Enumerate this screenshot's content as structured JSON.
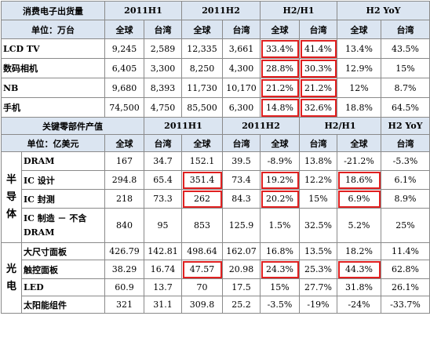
{
  "table1": {
    "title": "消费电子出货量",
    "unit": "单位：万台",
    "periods": [
      "2011H1",
      "2011H2",
      "H2/H1",
      "H2 YoY"
    ],
    "sub": [
      "全球",
      "台湾"
    ],
    "rows": [
      {
        "label": "LCD TV",
        "values": [
          "9,245",
          "2,589",
          "12,335",
          "3,661",
          "33.4%",
          "41.4%",
          "13.4%",
          "43.5%"
        ]
      },
      {
        "label": "数码相机",
        "values": [
          "6,405",
          "3,300",
          "8,250",
          "4,300",
          "28.8%",
          "30.3%",
          "12.9%",
          "15%"
        ]
      },
      {
        "label": "NB",
        "values": [
          "9,680",
          "8,393",
          "11,730",
          "10,170",
          "21.2%",
          "21.2%",
          "12%",
          "8.7%"
        ]
      },
      {
        "label": "手机",
        "values": [
          "74,500",
          "4,750",
          "85,500",
          "6,300",
          "14.8%",
          "32.6%",
          "18.8%",
          "64.5%"
        ]
      }
    ]
  },
  "table2": {
    "title": "关键零部件产值",
    "unit": "单位：亿美元",
    "periods": [
      "2011H1",
      "2011H2",
      "H2/H1",
      "H2 YoY"
    ],
    "sub": [
      "全球",
      "台湾"
    ],
    "groups": [
      {
        "category": [
          "半",
          "导",
          "体"
        ],
        "rows": [
          {
            "label": "DRAM",
            "values": [
              "167",
              "34.7",
              "152.1",
              "39.5",
              "-8.9%",
              "13.8%",
              "-21.2%",
              "-5.3%"
            ]
          },
          {
            "label": "IC 设计",
            "values": [
              "294.8",
              "65.4",
              "351.4",
              "73.4",
              "19.2%",
              "12.2%",
              "18.6%",
              "6.1%"
            ]
          },
          {
            "label": "IC 封测",
            "values": [
              "218",
              "73.3",
              "262",
              "84.3",
              "20.2%",
              "15%",
              "6.9%",
              "8.9%"
            ]
          },
          {
            "label": "IC 制造 － 不含 DRAM",
            "values": [
              "840",
              "95",
              "853",
              "125.9",
              "1.5%",
              "32.5%",
              "5.2%",
              "25%"
            ]
          }
        ]
      },
      {
        "category": [
          "光",
          "电"
        ],
        "rows": [
          {
            "label": "大尺寸面板",
            "values": [
              "426.79",
              "142.81",
              "498.64",
              "162.07",
              "16.8%",
              "13.5%",
              "18.2%",
              "11.4%"
            ]
          },
          {
            "label": "触控面板",
            "values": [
              "38.29",
              "16.74",
              "47.57",
              "20.98",
              "24.3%",
              "25.3%",
              "44.3%",
              "62.8%"
            ]
          },
          {
            "label": "LED",
            "values": [
              "60.9",
              "13.7",
              "70",
              "17.5",
              "15%",
              "27.7%",
              "31.8%",
              "26.1%"
            ]
          },
          {
            "label": "太阳能组件",
            "values": [
              "321",
              "31.1",
              "309.8",
              "25.2",
              "-3.5%",
              "-19%",
              "-24%",
              "-33.7%"
            ]
          }
        ]
      }
    ]
  },
  "colors": {
    "header_bg": "#dbe5f1",
    "highlight": "#e02020",
    "border": "#8a8a8a"
  }
}
